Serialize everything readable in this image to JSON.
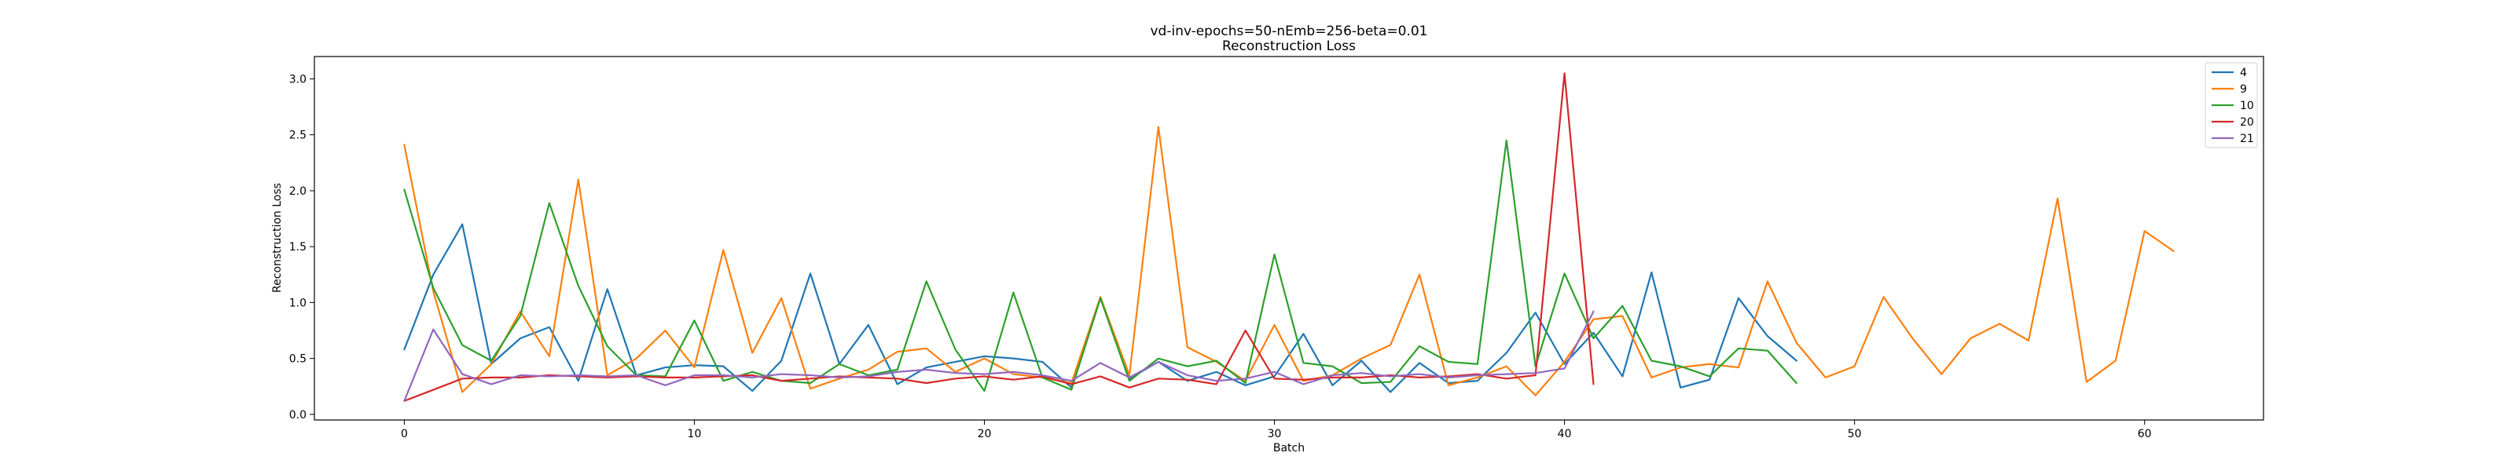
{
  "chart_data": {
    "type": "line",
    "title": "vd-inv-epochs=50-nEmb=256-beta=0.01",
    "subtitle": "Reconstruction Loss",
    "xlabel": "Batch",
    "ylabel": "Reconstruction Loss",
    "xlim": [
      -3.1,
      64.1
    ],
    "ylim": [
      -0.05,
      3.2
    ],
    "xticks": [
      0,
      10,
      20,
      30,
      40,
      50,
      60
    ],
    "yticks": [
      0.0,
      0.5,
      1.0,
      1.5,
      2.0,
      2.5,
      3.0
    ],
    "xtick_labels": [
      "0",
      "10",
      "20",
      "30",
      "40",
      "50",
      "60"
    ],
    "ytick_labels": [
      "0.0",
      "0.5",
      "1.0",
      "1.5",
      "2.0",
      "2.5",
      "3.0"
    ],
    "grid": false,
    "legend_position": "top-right",
    "series": [
      {
        "name": "4",
        "color": "#1f77b4",
        "values": [
          0.58,
          1.25,
          1.7,
          0.45,
          0.68,
          0.78,
          0.3,
          1.12,
          0.35,
          0.42,
          0.44,
          0.43,
          0.21,
          0.48,
          1.26,
          0.45,
          0.8,
          0.27,
          0.42,
          0.47,
          0.52,
          0.5,
          0.47,
          0.24,
          1.04,
          0.32,
          0.47,
          0.3,
          0.38,
          0.26,
          0.34,
          0.72,
          0.26,
          0.48,
          0.2,
          0.46,
          0.28,
          0.3,
          0.55,
          0.91,
          0.45,
          0.73,
          0.34,
          1.27,
          0.24,
          0.31,
          1.04,
          0.7,
          0.48
        ]
      },
      {
        "name": "9",
        "color": "#ff7f0e",
        "values": [
          2.41,
          1.1,
          0.2,
          0.45,
          0.92,
          0.52,
          2.1,
          0.35,
          0.5,
          0.75,
          0.42,
          1.47,
          0.55,
          1.04,
          0.23,
          0.32,
          0.4,
          0.56,
          0.59,
          0.38,
          0.5,
          0.36,
          0.33,
          0.28,
          1.05,
          0.35,
          2.57,
          0.6,
          0.47,
          0.3,
          0.8,
          0.3,
          0.35,
          0.5,
          0.62,
          1.25,
          0.26,
          0.33,
          0.43,
          0.17,
          0.47,
          0.85,
          0.88,
          0.33,
          0.42,
          0.45,
          0.42,
          1.19,
          0.64,
          0.33,
          0.43,
          1.05,
          0.68,
          0.36,
          0.68,
          0.81,
          0.66,
          1.93,
          0.29,
          0.48,
          1.64,
          1.46
        ]
      },
      {
        "name": "10",
        "color": "#2ca02c",
        "values": [
          2.01,
          1.13,
          0.62,
          0.48,
          0.88,
          1.89,
          1.15,
          0.61,
          0.35,
          0.34,
          0.84,
          0.3,
          0.38,
          0.3,
          0.28,
          0.45,
          0.35,
          0.4,
          1.19,
          0.58,
          0.21,
          1.09,
          0.33,
          0.22,
          1.04,
          0.3,
          0.5,
          0.43,
          0.48,
          0.28,
          1.43,
          0.46,
          0.43,
          0.28,
          0.29,
          0.61,
          0.47,
          0.45,
          2.45,
          0.43,
          1.26,
          0.68,
          0.97,
          0.48,
          0.43,
          0.34,
          0.59,
          0.57,
          0.28
        ]
      },
      {
        "name": "20",
        "color": "#d62728",
        "values": [
          0.12,
          0.22,
          0.32,
          0.33,
          0.33,
          0.35,
          0.34,
          0.33,
          0.34,
          0.33,
          0.33,
          0.34,
          0.35,
          0.3,
          0.32,
          0.34,
          0.33,
          0.32,
          0.28,
          0.32,
          0.34,
          0.31,
          0.34,
          0.27,
          0.34,
          0.24,
          0.32,
          0.31,
          0.27,
          0.75,
          0.32,
          0.31,
          0.33,
          0.33,
          0.35,
          0.33,
          0.34,
          0.36,
          0.32,
          0.35,
          3.05,
          0.27
        ]
      },
      {
        "name": "21",
        "color": "#9467bd",
        "values": [
          0.12,
          0.76,
          0.36,
          0.27,
          0.35,
          0.34,
          0.35,
          0.34,
          0.35,
          0.26,
          0.35,
          0.35,
          0.33,
          0.36,
          0.35,
          0.33,
          0.34,
          0.38,
          0.4,
          0.37,
          0.36,
          0.38,
          0.35,
          0.3,
          0.46,
          0.33,
          0.47,
          0.35,
          0.3,
          0.32,
          0.38,
          0.27,
          0.35,
          0.37,
          0.34,
          0.36,
          0.33,
          0.35,
          0.36,
          0.37,
          0.41,
          0.92
        ]
      }
    ]
  }
}
